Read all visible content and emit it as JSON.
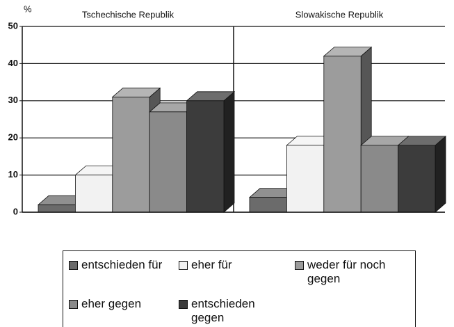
{
  "chart_data": {
    "type": "bar",
    "ylabel": "%",
    "categories": [
      "Tschechische Republik",
      "Slowakische Republik"
    ],
    "series": [
      {
        "name": "entschieden für",
        "color": "#6b6b6b",
        "values": [
          2,
          4
        ]
      },
      {
        "name": "eher für",
        "color": "#f2f2f2",
        "values": [
          10,
          18
        ]
      },
      {
        "name": "weder für noch gegen",
        "color": "#9c9c9c",
        "values": [
          31,
          42
        ]
      },
      {
        "name": "eher gegen",
        "color": "#8a8a8a",
        "values": [
          27,
          18
        ]
      },
      {
        "name": "entschieden gegen",
        "color": "#3c3c3c",
        "values": [
          30,
          18
        ]
      }
    ],
    "ylim": [
      0,
      50
    ],
    "yticks": [
      0,
      10,
      20,
      30,
      40,
      50
    ],
    "grid": true
  }
}
